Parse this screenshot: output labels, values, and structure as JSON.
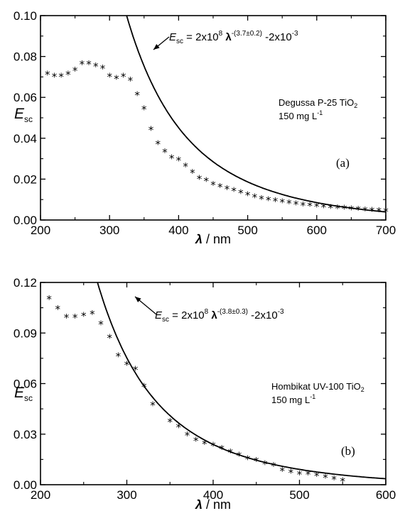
{
  "chart_data": [
    {
      "type": "scatter",
      "panel_label": "(a)",
      "xlabel": "λ / nm",
      "ylabel": "Esc",
      "xlim": [
        200,
        700
      ],
      "ylim": [
        0,
        0.1
      ],
      "xticks": [
        "200",
        "300",
        "400",
        "500",
        "600",
        "700"
      ],
      "yticks": [
        "0.00",
        "0.02",
        "0.04",
        "0.06",
        "0.08",
        "0.10"
      ],
      "sample_lines": [
        "Degussa P-25 TiO2",
        "150 mg L-1"
      ],
      "equation": "Esc = 2x10^8 λ^-(3.7±0.2) -2x10^-3",
      "fit": {
        "a": 200000000,
        "b": 3.7,
        "c": 0.002
      },
      "series": [
        {
          "x": [
            210,
            220,
            230,
            240,
            250,
            260,
            270,
            280,
            290,
            300,
            310,
            320,
            330,
            340,
            350,
            360,
            370,
            380,
            390,
            400,
            410,
            420,
            430,
            440,
            450,
            460,
            470,
            480,
            490,
            500,
            510,
            520,
            530,
            540,
            550,
            560,
            570,
            580,
            590,
            600,
            610,
            620,
            630,
            640,
            650,
            660,
            670,
            680,
            690,
            700
          ],
          "values": [
            0.071,
            0.07,
            0.07,
            0.071,
            0.073,
            0.076,
            0.076,
            0.075,
            0.074,
            0.07,
            0.069,
            0.07,
            0.068,
            0.061,
            0.054,
            0.044,
            0.037,
            0.033,
            0.03,
            0.029,
            0.026,
            0.023,
            0.02,
            0.019,
            0.017,
            0.016,
            0.015,
            0.014,
            0.013,
            0.012,
            0.011,
            0.01,
            0.0095,
            0.009,
            0.0085,
            0.008,
            0.0075,
            0.007,
            0.0068,
            0.0065,
            0.006,
            0.0058,
            0.0055,
            0.0053,
            0.005,
            0.0048,
            0.0046,
            0.0044,
            0.0042,
            0.004
          ]
        }
      ]
    },
    {
      "type": "scatter",
      "panel_label": "(b)",
      "xlabel": "λ / nm",
      "ylabel": "Esc",
      "xlim": [
        200,
        600
      ],
      "ylim": [
        0,
        0.12
      ],
      "xticks": [
        "200",
        "300",
        "400",
        "500",
        "600"
      ],
      "yticks": [
        "0.00",
        "0.03",
        "0.06",
        "0.09",
        "0.12"
      ],
      "sample_lines": [
        "Hombikat UV-100 TiO2",
        "150 mg L-1"
      ],
      "equation": "Esc = 2x10^8 λ^-(3.8±0.3) -2x10^-3",
      "fit": {
        "a": 200000000,
        "b": 3.8,
        "c": 0.002
      },
      "series": [
        {
          "x": [
            210,
            220,
            230,
            240,
            250,
            260,
            270,
            280,
            290,
            300,
            310,
            320,
            330,
            350,
            360,
            370,
            380,
            390,
            400,
            410,
            420,
            430,
            440,
            450,
            460,
            470,
            480,
            490,
            500,
            510,
            520,
            530,
            540,
            550
          ],
          "values": [
            0.11,
            0.104,
            0.099,
            0.099,
            0.1,
            0.101,
            0.095,
            0.087,
            0.076,
            0.071,
            0.068,
            0.058,
            0.047,
            0.037,
            0.034,
            0.029,
            0.026,
            0.024,
            0.023,
            0.021,
            0.019,
            0.017,
            0.015,
            0.014,
            0.012,
            0.011,
            0.008,
            0.007,
            0.006,
            0.006,
            0.005,
            0.004,
            0.003,
            0.002
          ]
        }
      ]
    }
  ]
}
